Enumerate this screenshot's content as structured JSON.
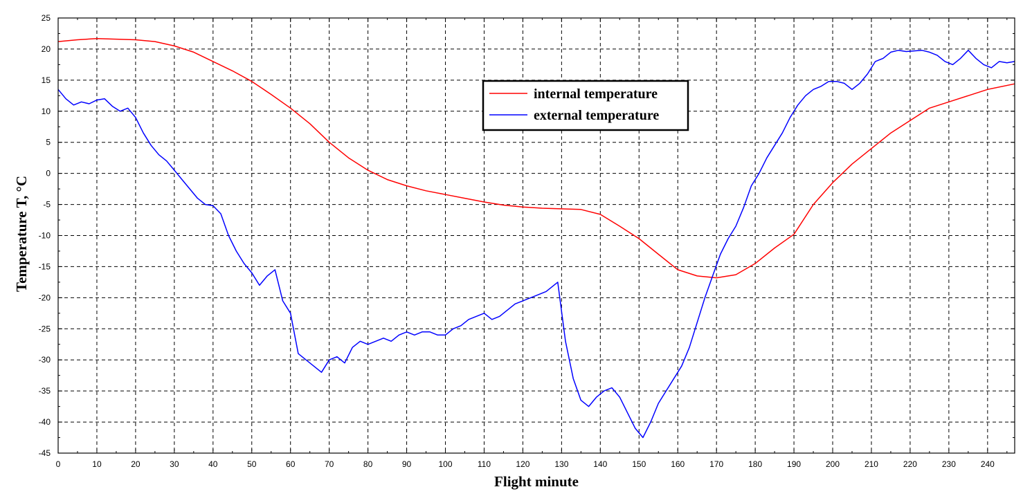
{
  "chart_data": {
    "type": "line",
    "title": "",
    "xlabel": "Flight minute",
    "ylabel": "Temperature T, °C",
    "xlim": [
      0,
      247
    ],
    "ylim": [
      -45,
      25
    ],
    "x_ticks": [
      "0",
      "10",
      "20",
      "30",
      "40",
      "50",
      "60",
      "70",
      "80",
      "90",
      "100",
      "110",
      "120",
      "130",
      "140",
      "150",
      "160",
      "170",
      "180",
      "190",
      "200",
      "210",
      "220",
      "230",
      "240"
    ],
    "y_ticks": [
      "25",
      "20",
      "15",
      "10",
      "5",
      "0",
      "-5",
      "-10",
      "-15",
      "-20",
      "-25",
      "-30",
      "-35",
      "-40",
      "-45"
    ],
    "grid": true,
    "legend_position": "upper-center",
    "series": [
      {
        "name": "internal temperature",
        "color": "#ff0000",
        "x": [
          0,
          5,
          10,
          15,
          20,
          25,
          30,
          35,
          40,
          45,
          50,
          55,
          60,
          65,
          70,
          75,
          80,
          85,
          90,
          95,
          100,
          105,
          110,
          115,
          120,
          125,
          130,
          135,
          140,
          145,
          150,
          155,
          160,
          165,
          170,
          175,
          180,
          185,
          190,
          195,
          200,
          205,
          210,
          215,
          220,
          225,
          230,
          235,
          240,
          247
        ],
        "y": [
          21.2,
          21.5,
          21.7,
          21.6,
          21.5,
          21.2,
          20.5,
          19.5,
          18.0,
          16.5,
          14.8,
          12.7,
          10.5,
          8.0,
          5.0,
          2.5,
          0.5,
          -1.0,
          -2.0,
          -2.8,
          -3.4,
          -4.0,
          -4.6,
          -5.1,
          -5.4,
          -5.6,
          -5.7,
          -5.8,
          -6.6,
          -8.5,
          -10.5,
          -13.0,
          -15.5,
          -16.5,
          -16.8,
          -16.3,
          -14.5,
          -12.0,
          -9.8,
          -5.0,
          -1.5,
          1.5,
          4.0,
          6.5,
          8.5,
          10.5,
          11.5,
          12.5,
          13.5,
          14.4
        ]
      },
      {
        "name": "external temperature",
        "color": "#0000ff",
        "x": [
          0,
          2,
          4,
          6,
          8,
          10,
          12,
          14,
          16,
          18,
          20,
          22,
          24,
          26,
          28,
          30,
          32,
          34,
          36,
          38,
          40,
          42,
          44,
          46,
          48,
          50,
          52,
          54,
          56,
          58,
          60,
          62,
          64,
          66,
          68,
          70,
          72,
          74,
          76,
          78,
          80,
          82,
          84,
          86,
          88,
          90,
          92,
          94,
          96,
          98,
          100,
          102,
          104,
          106,
          108,
          110,
          112,
          114,
          116,
          118,
          120,
          122,
          124,
          126,
          128,
          129,
          131,
          133,
          135,
          137,
          139,
          141,
          143,
          145,
          147,
          149,
          151,
          153,
          155,
          157,
          159,
          161,
          163,
          165,
          167,
          169,
          171,
          173,
          175,
          177,
          179,
          181,
          183,
          185,
          187,
          189,
          191,
          193,
          195,
          197,
          199,
          201,
          203,
          205,
          207,
          209,
          211,
          213,
          215,
          217,
          219,
          221,
          223,
          225,
          227,
          229,
          231,
          233,
          235,
          237,
          239,
          241,
          243,
          245,
          247
        ],
        "y": [
          13.5,
          12.0,
          11.0,
          11.5,
          11.2,
          11.8,
          12.0,
          10.8,
          10.0,
          10.5,
          9.0,
          6.5,
          4.5,
          3.0,
          2.0,
          0.5,
          -1.0,
          -2.5,
          -4.0,
          -5.0,
          -5.2,
          -6.5,
          -10.0,
          -12.5,
          -14.5,
          -16.0,
          -18.0,
          -16.5,
          -15.5,
          -20.5,
          -22.5,
          -29.0,
          -30.0,
          -31.0,
          -32.0,
          -30.0,
          -29.5,
          -30.5,
          -28.0,
          -27.0,
          -27.5,
          -27.0,
          -26.5,
          -27.0,
          -26.0,
          -25.5,
          -26.0,
          -25.5,
          -25.5,
          -26.0,
          -26.0,
          -25.0,
          -24.5,
          -23.5,
          -23.0,
          -22.5,
          -23.5,
          -23.0,
          -22.0,
          -21.0,
          -20.5,
          -20.0,
          -19.5,
          -19.0,
          -18.0,
          -17.5,
          -27.0,
          -33.0,
          -36.5,
          -37.5,
          -36.0,
          -35.0,
          -34.5,
          -36.0,
          -38.5,
          -41.0,
          -42.5,
          -40.0,
          -37.0,
          -35.0,
          -33.0,
          -31.0,
          -28.0,
          -24.0,
          -20.0,
          -16.5,
          -13.0,
          -10.5,
          -8.5,
          -5.5,
          -2.0,
          0.0,
          2.5,
          4.5,
          6.5,
          9.0,
          11.0,
          12.5,
          13.5,
          14.0,
          14.8,
          14.8,
          14.5,
          13.5,
          14.5,
          16.0,
          18.0,
          18.5,
          19.5,
          19.8,
          19.6,
          19.7,
          19.8,
          19.5,
          19.0,
          18.0,
          17.5,
          18.5,
          19.8,
          18.5,
          17.5,
          17.0,
          18.0,
          17.8,
          18.0
        ]
      }
    ]
  }
}
